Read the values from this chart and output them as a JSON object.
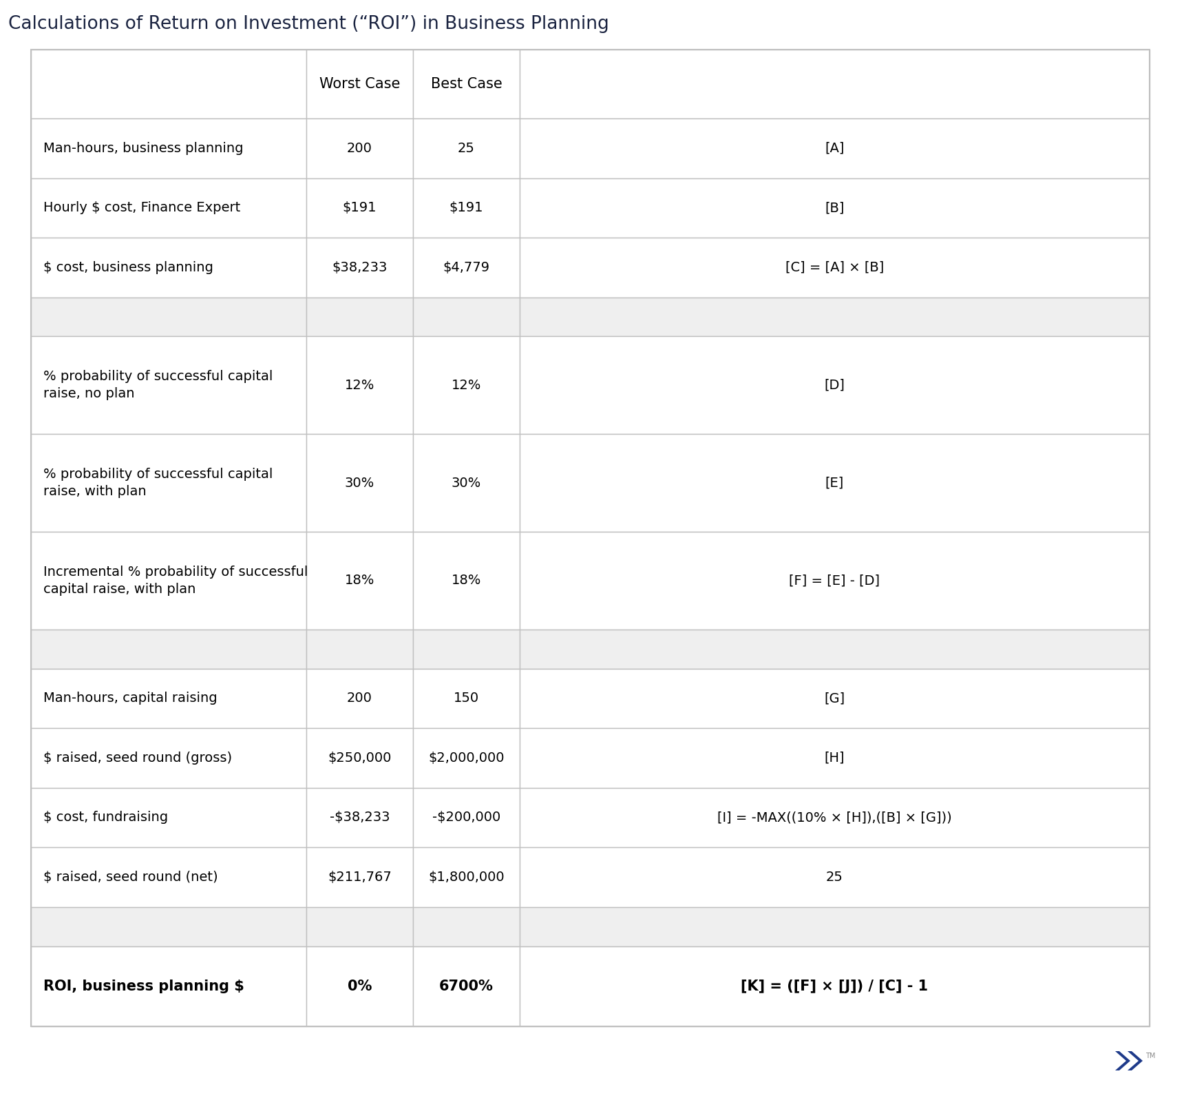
{
  "title": "Calculations of Return on Investment (“ROI”) in Business Planning",
  "title_color": "#1a2340",
  "title_fontsize": 19,
  "col_headers": [
    "",
    "Worst Case",
    "Best Case",
    ""
  ],
  "rows": [
    {
      "label": "Man-hours, business planning",
      "worst": "200",
      "best": "25",
      "formula": "[A]",
      "bold": false,
      "spacer": false
    },
    {
      "label": "Hourly $ cost, Finance Expert",
      "worst": "$191",
      "best": "$191",
      "formula": "[B]",
      "bold": false,
      "spacer": false
    },
    {
      "label": "$ cost, business planning",
      "worst": "$38,233",
      "best": "$4,779",
      "formula": "[C] = [A] × [B]",
      "bold": false,
      "spacer": false
    },
    {
      "label": "",
      "worst": "",
      "best": "",
      "formula": "",
      "bold": false,
      "spacer": true
    },
    {
      "label": "% probability of successful capital\nraise, no plan",
      "worst": "12%",
      "best": "12%",
      "formula": "[D]",
      "bold": false,
      "spacer": false
    },
    {
      "label": "% probability of successful capital\nraise, with plan",
      "worst": "30%",
      "best": "30%",
      "formula": "[E]",
      "bold": false,
      "spacer": false
    },
    {
      "label": "Incremental % probability of successful\ncapital raise, with plan",
      "worst": "18%",
      "best": "18%",
      "formula": "[F] = [E] - [D]",
      "bold": false,
      "spacer": false
    },
    {
      "label": "",
      "worst": "",
      "best": "",
      "formula": "",
      "bold": false,
      "spacer": true
    },
    {
      "label": "Man-hours, capital raising",
      "worst": "200",
      "best": "150",
      "formula": "[G]",
      "bold": false,
      "spacer": false
    },
    {
      "label": "$ raised, seed round (gross)",
      "worst": "$250,000",
      "best": "$2,000,000",
      "formula": "[H]",
      "bold": false,
      "spacer": false
    },
    {
      "label": "$ cost, fundraising",
      "worst": "-$38,233",
      "best": "-$200,000",
      "formula": "[I] = -MAX((10% × [H]),([B] × [G]))",
      "bold": false,
      "spacer": false
    },
    {
      "label": "$ raised, seed round (net)",
      "worst": "$211,767",
      "best": "$1,800,000",
      "formula": "25",
      "bold": false,
      "spacer": false
    },
    {
      "label": "",
      "worst": "",
      "best": "",
      "formula": "",
      "bold": false,
      "spacer": true
    },
    {
      "label": "ROI, business planning $",
      "worst": "0%",
      "best": "6700%",
      "formula": "[K] = ([F] × [J]) / [C] - 1",
      "bold": true,
      "spacer": false
    }
  ],
  "border_color": "#c0c0c0",
  "spacer_bg": "#efefef",
  "cell_bg": "#ffffff",
  "text_color": "#000000",
  "header_fontsize": 15,
  "cell_fontsize": 14,
  "bold_fontsize": 15,
  "logo_color": "#1e3a8a"
}
